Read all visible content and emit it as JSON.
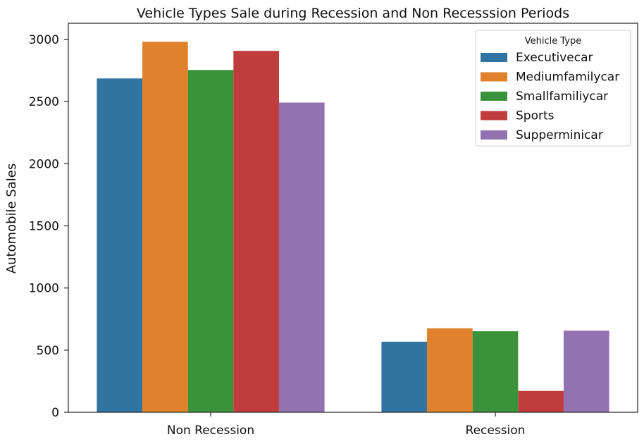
{
  "chart_data": {
    "type": "bar",
    "title": "Vehicle Types Sale during Recession and Non Recesssion Periods",
    "xlabel": "",
    "ylabel": "Automobile Sales",
    "categories": [
      "Non Recession",
      "Recession"
    ],
    "ylim": [
      0,
      3130
    ],
    "yticks": [
      0,
      500,
      1000,
      1500,
      2000,
      2500,
      3000
    ],
    "grid": false,
    "legend": {
      "title": "Vehicle Type",
      "placement": "top-right"
    },
    "series": [
      {
        "name": "Executivecar",
        "color": "#3274a1",
        "values": [
          2686,
          568
        ]
      },
      {
        "name": "Mediumfamilycar",
        "color": "#e1812c",
        "values": [
          2981,
          676
        ]
      },
      {
        "name": "Smallfamiliycar",
        "color": "#3a923a",
        "values": [
          2754,
          652
        ]
      },
      {
        "name": "Sports",
        "color": "#c03d3e",
        "values": [
          2908,
          172
        ]
      },
      {
        "name": "Supperminicar",
        "color": "#9372b2",
        "values": [
          2492,
          657
        ]
      }
    ]
  }
}
